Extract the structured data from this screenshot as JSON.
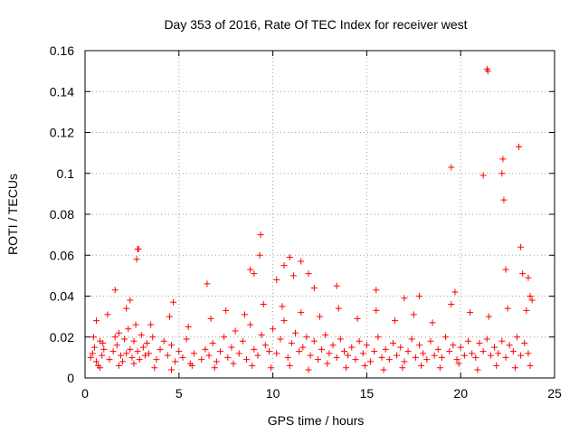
{
  "chart_data": {
    "type": "scatter",
    "title": "Day 353 of 2016, Rate Of TEC Index for receiver west",
    "xlabel": "GPS time / hours",
    "ylabel": "ROTI / TECUs",
    "xlim": [
      0,
      25
    ],
    "ylim": [
      0,
      0.16
    ],
    "xticks": [
      0,
      5,
      10,
      15,
      20,
      25
    ],
    "yticks": [
      0,
      0.02,
      0.04,
      0.06,
      0.08,
      0.1,
      0.12,
      0.14,
      0.16
    ],
    "xtick_labels": [
      "0",
      "5",
      "10",
      "15",
      "20",
      "25"
    ],
    "ytick_labels": [
      "0",
      "0.02",
      "0.04",
      "0.06",
      "0.08",
      "0.1",
      "0.12",
      "0.14",
      "0.16"
    ],
    "grid": true,
    "marker": "+",
    "marker_color": "#ff0000",
    "series": [
      {
        "name": "ROTI",
        "x": [
          0.3,
          0.4,
          0.5,
          0.6,
          0.8,
          0.9,
          1.0,
          0.45,
          0.7,
          0.95,
          1.3,
          1.5,
          1.6,
          1.7,
          1.8,
          1.9,
          2.0,
          2.1,
          2.2,
          2.3,
          2.4,
          2.5,
          2.6,
          2.7,
          2.8,
          2.9,
          3.0,
          3.1,
          3.2,
          3.3,
          3.4,
          3.6,
          3.8,
          4.0,
          4.2,
          4.4,
          4.6,
          4.8,
          5.0,
          5.2,
          5.4,
          5.6,
          5.8,
          6.2,
          6.4,
          6.6,
          6.8,
          7.0,
          7.2,
          7.4,
          7.6,
          7.8,
          8.0,
          8.2,
          8.4,
          8.6,
          8.8,
          9.0,
          9.2,
          9.4,
          9.6,
          9.8,
          10.0,
          10.2,
          10.4,
          10.6,
          10.8,
          11.0,
          11.2,
          11.4,
          11.6,
          11.8,
          12.0,
          12.2,
          12.4,
          12.6,
          12.8,
          13.0,
          13.2,
          13.4,
          13.6,
          13.8,
          14.0,
          14.2,
          14.4,
          14.6,
          14.8,
          15.0,
          15.2,
          15.4,
          15.6,
          15.8,
          16.0,
          16.2,
          16.4,
          16.6,
          16.8,
          17.0,
          17.2,
          17.4,
          17.6,
          17.8,
          18.0,
          18.2,
          18.4,
          18.6,
          18.8,
          19.0,
          19.2,
          19.4,
          19.6,
          19.8,
          20.0,
          20.2,
          20.4,
          20.6,
          20.8,
          21.0,
          21.2,
          21.4,
          21.6,
          21.8,
          22.0,
          22.2,
          22.4,
          22.6,
          22.8,
          23.0,
          23.2,
          23.4,
          23.6,
          1.6,
          2.4,
          2.8,
          2.85,
          2.75,
          4.7,
          6.5,
          8.8,
          9.0,
          9.3,
          9.35,
          10.2,
          10.6,
          10.9,
          11.1,
          11.5,
          11.9,
          12.2,
          13.4,
          15.5,
          17.0,
          17.8,
          19.5,
          19.7,
          21.2,
          21.4,
          21.45,
          22.2,
          22.25,
          22.3,
          22.4,
          23.1,
          23.2,
          23.3,
          23.6,
          23.7,
          23.8,
          0.6,
          1.2,
          2.2,
          3.5,
          4.5,
          5.5,
          6.7,
          7.5,
          8.5,
          9.5,
          10.5,
          11.5,
          12.5,
          13.5,
          14.5,
          15.5,
          16.5,
          17.5,
          18.5,
          19.5,
          20.5,
          21.5,
          22.5,
          23.5,
          0.8,
          1.8,
          2.6,
          3.7,
          4.6,
          5.7,
          6.9,
          7.9,
          8.9,
          9.9,
          10.9,
          11.9,
          12.9,
          13.9,
          14.9,
          15.9,
          16.9,
          17.9,
          18.9,
          19.9,
          20.9,
          21.9,
          22.9,
          23.7
        ],
        "y": [
          0.01,
          0.012,
          0.015,
          0.008,
          0.018,
          0.011,
          0.014,
          0.02,
          0.006,
          0.017,
          0.009,
          0.013,
          0.02,
          0.016,
          0.022,
          0.011,
          0.008,
          0.019,
          0.012,
          0.024,
          0.014,
          0.01,
          0.018,
          0.026,
          0.013,
          0.009,
          0.021,
          0.015,
          0.011,
          0.017,
          0.012,
          0.02,
          0.009,
          0.014,
          0.018,
          0.011,
          0.016,
          0.008,
          0.013,
          0.01,
          0.019,
          0.007,
          0.012,
          0.009,
          0.014,
          0.011,
          0.017,
          0.008,
          0.013,
          0.02,
          0.01,
          0.015,
          0.023,
          0.012,
          0.018,
          0.009,
          0.026,
          0.014,
          0.011,
          0.021,
          0.016,
          0.013,
          0.024,
          0.012,
          0.019,
          0.028,
          0.01,
          0.017,
          0.022,
          0.013,
          0.015,
          0.02,
          0.011,
          0.018,
          0.009,
          0.014,
          0.021,
          0.012,
          0.016,
          0.01,
          0.019,
          0.013,
          0.011,
          0.015,
          0.009,
          0.018,
          0.012,
          0.016,
          0.008,
          0.013,
          0.02,
          0.01,
          0.014,
          0.009,
          0.017,
          0.011,
          0.015,
          0.008,
          0.013,
          0.019,
          0.01,
          0.016,
          0.012,
          0.009,
          0.018,
          0.011,
          0.014,
          0.01,
          0.02,
          0.013,
          0.016,
          0.009,
          0.015,
          0.011,
          0.018,
          0.012,
          0.01,
          0.017,
          0.013,
          0.019,
          0.011,
          0.015,
          0.012,
          0.018,
          0.01,
          0.016,
          0.013,
          0.02,
          0.011,
          0.017,
          0.012,
          0.043,
          0.038,
          0.063,
          0.063,
          0.058,
          0.037,
          0.046,
          0.053,
          0.051,
          0.06,
          0.07,
          0.048,
          0.055,
          0.059,
          0.05,
          0.057,
          0.051,
          0.044,
          0.045,
          0.043,
          0.039,
          0.04,
          0.103,
          0.042,
          0.099,
          0.151,
          0.15,
          0.1,
          0.107,
          0.087,
          0.053,
          0.113,
          0.064,
          0.051,
          0.049,
          0.04,
          0.038,
          0.028,
          0.031,
          0.034,
          0.026,
          0.03,
          0.025,
          0.029,
          0.033,
          0.031,
          0.036,
          0.035,
          0.032,
          0.03,
          0.034,
          0.029,
          0.033,
          0.028,
          0.031,
          0.027,
          0.036,
          0.032,
          0.03,
          0.034,
          0.033,
          0.005,
          0.006,
          0.007,
          0.005,
          0.004,
          0.006,
          0.005,
          0.007,
          0.006,
          0.005,
          0.006,
          0.004,
          0.007,
          0.005,
          0.006,
          0.004,
          0.005,
          0.006,
          0.005,
          0.007,
          0.004,
          0.006,
          0.005,
          0.006
        ]
      }
    ]
  }
}
